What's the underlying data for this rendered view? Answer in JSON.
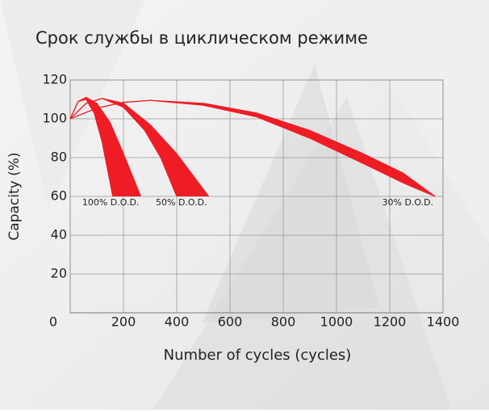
{
  "chart_data": {
    "type": "band",
    "title": "Срок службы в циклическом режиме",
    "x_label": "Number of cycles (cycles)",
    "y_label": "Capacity (%)",
    "xlim": [
      0,
      1400
    ],
    "ylim": [
      0,
      120
    ],
    "xticks": [
      0,
      200,
      400,
      600,
      800,
      1000,
      1200,
      1400
    ],
    "yticks": [
      20,
      40,
      60,
      80,
      100,
      120
    ],
    "grid": true,
    "color": "#ee1c25",
    "series": [
      {
        "name": "100% D.O.D.",
        "upper": {
          "x": [
            0,
            30,
            60,
            100,
            150,
            200,
            265
          ],
          "y": [
            100,
            109,
            111,
            108,
            98,
            82,
            60
          ]
        },
        "lower": {
          "x": [
            0,
            30,
            60,
            90,
            120,
            160
          ],
          "y": [
            100,
            109,
            110,
            103,
            88,
            60
          ]
        }
      },
      {
        "name": "50% D.O.D.",
        "upper": {
          "x": [
            0,
            60,
            120,
            200,
            300,
            400,
            520
          ],
          "y": [
            100,
            108,
            110.5,
            108,
            97,
            82,
            60
          ]
        },
        "lower": {
          "x": [
            0,
            60,
            120,
            200,
            280,
            340,
            400
          ],
          "y": [
            100,
            108,
            110.5,
            106,
            94,
            80,
            60
          ]
        }
      },
      {
        "name": "30% D.O.D.",
        "upper": {
          "x": [
            0,
            100,
            200,
            300,
            500,
            700,
            900,
            1100,
            1250,
            1370
          ],
          "y": [
            100,
            105.5,
            108.5,
            109.5,
            108,
            103,
            94,
            82,
            72,
            60
          ]
        },
        "lower": {
          "x": [
            0,
            100,
            200,
            300,
            500,
            700,
            900,
            1100,
            1250,
            1370
          ],
          "y": [
            100,
            105.5,
            108.5,
            109.5,
            107,
            101,
            90,
            77,
            67,
            60
          ]
        }
      }
    ]
  }
}
